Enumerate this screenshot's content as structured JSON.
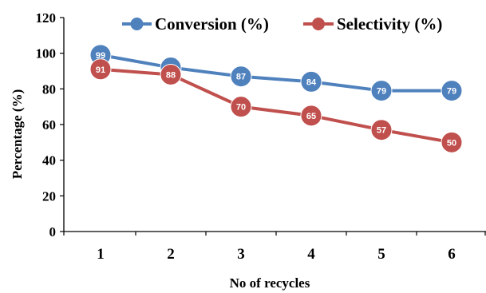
{
  "chart_data": {
    "type": "line",
    "title": "",
    "xlabel": "No of recycles",
    "ylabel": "Percentage (%)",
    "x": [
      1,
      2,
      3,
      4,
      5,
      6
    ],
    "ylim": [
      0,
      120
    ],
    "yticks": [
      0,
      20,
      40,
      60,
      80,
      100,
      120
    ],
    "grid": false,
    "legend_position": "top",
    "series": [
      {
        "name": "Conversion (%)",
        "color": "#4f81bd",
        "values": [
          99,
          92,
          87,
          84,
          79,
          79
        ]
      },
      {
        "name": "Selectivity (%)",
        "color": "#c0504d",
        "values": [
          91,
          88,
          70,
          65,
          57,
          50
        ]
      }
    ]
  }
}
